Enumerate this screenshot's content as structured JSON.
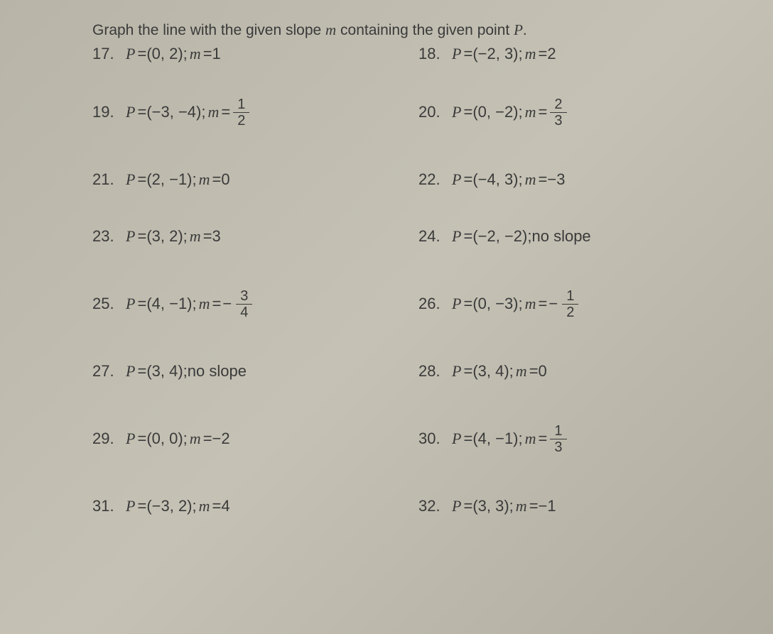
{
  "page": {
    "background_color": "#bab7aa",
    "text_color": "#3a3a3a",
    "font_size_body": 22,
    "font_size_instruction": 21
  },
  "instruction": {
    "prefix": "Graph the line with the given slope ",
    "var1": "m",
    "middle": " containing the given point ",
    "var2": "P",
    "suffix": "."
  },
  "problems": [
    {
      "num": "17.",
      "point": "(0, 2)",
      "slope_type": "int",
      "slope": "1",
      "row": "first"
    },
    {
      "num": "18.",
      "point": "(−2, 3)",
      "slope_type": "int",
      "slope": "2",
      "row": "first"
    },
    {
      "num": "19.",
      "point": "(−3, −4)",
      "slope_type": "frac",
      "frac_num": "1",
      "frac_den": "2",
      "neg": false,
      "row": "tall"
    },
    {
      "num": "20.",
      "point": "(0, −2)",
      "slope_type": "frac",
      "frac_num": "2",
      "frac_den": "3",
      "neg": false,
      "row": "tall"
    },
    {
      "num": "21.",
      "point": "(2, −1)",
      "slope_type": "int",
      "slope": "0",
      "row": "short"
    },
    {
      "num": "22.",
      "point": "(−4, 3)",
      "slope_type": "int",
      "slope": "−3",
      "row": "short"
    },
    {
      "num": "23.",
      "point": "(3, 2)",
      "slope_type": "int",
      "slope": "3",
      "row": "short"
    },
    {
      "num": "24.",
      "point": "(−2, −2)",
      "slope_type": "none",
      "row": "short"
    },
    {
      "num": "25.",
      "point": "(4, −1)",
      "slope_type": "frac",
      "frac_num": "3",
      "frac_den": "4",
      "neg": true,
      "row": "tall"
    },
    {
      "num": "26.",
      "point": "(0, −3)",
      "slope_type": "frac",
      "frac_num": "1",
      "frac_den": "2",
      "neg": true,
      "row": "tall"
    },
    {
      "num": "27.",
      "point": "(3, 4)",
      "slope_type": "none",
      "row": "short"
    },
    {
      "num": "28.",
      "point": "(3, 4)",
      "slope_type": "int",
      "slope": "0",
      "row": "short"
    },
    {
      "num": "29.",
      "point": "(0, 0)",
      "slope_type": "int",
      "slope": "−2",
      "row": "tall"
    },
    {
      "num": "30.",
      "point": "(4, −1)",
      "slope_type": "frac",
      "frac_num": "1",
      "frac_den": "3",
      "neg": false,
      "row": "tall"
    },
    {
      "num": "31.",
      "point": "(−3, 2)",
      "slope_type": "int",
      "slope": "4",
      "row": "short"
    },
    {
      "num": "32.",
      "point": "(3, 3)",
      "slope_type": "int",
      "slope": "−1",
      "row": "short"
    }
  ],
  "labels": {
    "no_slope": "no slope",
    "var_P": "P",
    "var_m": "m",
    "equals": " = ",
    "sep": "; "
  }
}
